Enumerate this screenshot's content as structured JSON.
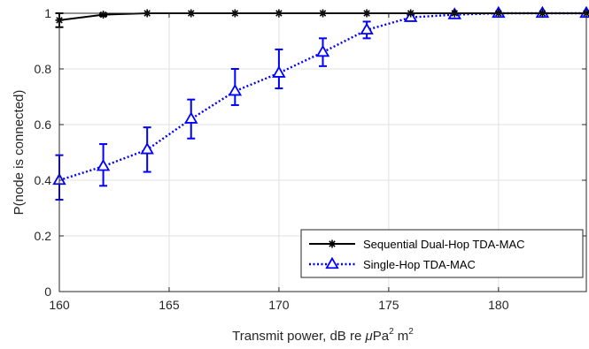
{
  "chart_data": {
    "type": "line",
    "xlabel_main": "Transmit power, dB re ",
    "xlabel_mu": "μ",
    "xlabel_pa": "Pa",
    "xlabel_sup1": "2",
    "xlabel_m": " m",
    "xlabel_sup2": "2",
    "ylabel": "P(node is connected)",
    "xlim": [
      160,
      184
    ],
    "ylim": [
      0,
      1
    ],
    "xticks": [
      160,
      165,
      170,
      175,
      180
    ],
    "yticks": [
      0,
      0.2,
      0.4,
      0.6,
      0.8,
      1
    ],
    "ytick_labels": [
      "0",
      "0.2",
      "0.4",
      "0.6",
      "0.8",
      "1"
    ],
    "grid": true,
    "legend_position": "bottom-right",
    "series": [
      {
        "name": "Sequential Dual-Hop TDA-MAC",
        "color": "#000000",
        "marker": "asterisk",
        "line_style": "solid",
        "x": [
          160,
          162,
          164,
          166,
          168,
          170,
          172,
          174,
          176,
          178,
          180,
          182,
          184
        ],
        "y": [
          0.975,
          0.995,
          1.0,
          1.0,
          1.0,
          1.0,
          1.0,
          1.0,
          1.0,
          1.0,
          1.0,
          1.0,
          1.0
        ],
        "err_low": [
          0.025,
          0.005,
          0,
          0,
          0,
          0,
          0,
          0,
          0,
          0,
          0,
          0,
          0
        ],
        "err_high": [
          0.025,
          0.005,
          0,
          0,
          0,
          0,
          0,
          0,
          0,
          0,
          0,
          0,
          0
        ]
      },
      {
        "name": "Single-Hop TDA-MAC",
        "color": "#0000ff",
        "marker": "triangle",
        "line_style": "dotted",
        "x": [
          160,
          162,
          164,
          166,
          168,
          170,
          172,
          174,
          176,
          178,
          180,
          182,
          184
        ],
        "y": [
          0.4,
          0.45,
          0.51,
          0.62,
          0.72,
          0.785,
          0.86,
          0.94,
          0.985,
          0.995,
          1.0,
          1.0,
          1.0
        ],
        "err_low": [
          0.07,
          0.07,
          0.08,
          0.07,
          0.05,
          0.055,
          0.05,
          0.03,
          0.01,
          0.005,
          0,
          0,
          0
        ],
        "err_high": [
          0.09,
          0.08,
          0.08,
          0.07,
          0.08,
          0.085,
          0.05,
          0.03,
          0.01,
          0.005,
          0,
          0,
          0
        ]
      }
    ]
  }
}
